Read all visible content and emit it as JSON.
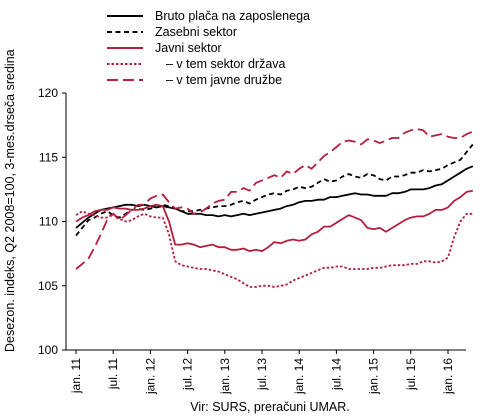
{
  "chart_data": {
    "type": "line",
    "title": "",
    "ylabel": "Desezon. indeks, Q2 2008=100, 3-mes.drseča sredina",
    "xlabel": "",
    "source": "Vir: SURS, preračuni UMAR.",
    "ylim": [
      100,
      120
    ],
    "yticks": [
      100,
      105,
      110,
      115,
      120
    ],
    "x_tick_labels": [
      "jan. 11",
      "jul. 11",
      "jan. 12",
      "jul. 12",
      "jan. 13",
      "jul. 13",
      "jan. 14",
      "jul. 14",
      "jan. 15",
      "jul. 15",
      "jan. 16"
    ],
    "x": [
      "2011-01",
      "2011-02",
      "2011-03",
      "2011-04",
      "2011-05",
      "2011-06",
      "2011-07",
      "2011-08",
      "2011-09",
      "2011-10",
      "2011-11",
      "2011-12",
      "2012-01",
      "2012-02",
      "2012-03",
      "2012-04",
      "2012-05",
      "2012-06",
      "2012-07",
      "2012-08",
      "2012-09",
      "2012-10",
      "2012-11",
      "2012-12",
      "2013-01",
      "2013-02",
      "2013-03",
      "2013-04",
      "2013-05",
      "2013-06",
      "2013-07",
      "2013-08",
      "2013-09",
      "2013-10",
      "2013-11",
      "2013-12",
      "2014-01",
      "2014-02",
      "2014-03",
      "2014-04",
      "2014-05",
      "2014-06",
      "2014-07",
      "2014-08",
      "2014-09",
      "2014-10",
      "2014-11",
      "2014-12",
      "2015-01",
      "2015-02",
      "2015-03",
      "2015-04",
      "2015-05",
      "2015-06",
      "2015-07",
      "2015-08",
      "2015-09",
      "2015-10",
      "2015-11",
      "2015-12",
      "2016-01",
      "2016-02",
      "2016-03",
      "2016-04",
      "2016-05"
    ],
    "grid": false,
    "legend_position": "top",
    "series": [
      {
        "name": "Bruto plača na zaposlenega",
        "color": "#000000",
        "style": "solid",
        "values": [
          109.5,
          109.9,
          110.3,
          110.6,
          110.9,
          111.0,
          111.1,
          111.2,
          111.3,
          111.3,
          111.2,
          111.3,
          111.2,
          111.1,
          111.2,
          111.1,
          111.0,
          110.8,
          110.6,
          110.6,
          110.6,
          110.5,
          110.5,
          110.4,
          110.5,
          110.4,
          110.5,
          110.6,
          110.5,
          110.6,
          110.7,
          110.8,
          110.9,
          111.0,
          111.2,
          111.3,
          111.5,
          111.6,
          111.6,
          111.7,
          111.7,
          111.9,
          111.9,
          112.0,
          112.1,
          112.2,
          112.1,
          112.1,
          112.0,
          112.0,
          112.0,
          112.2,
          112.2,
          112.3,
          112.5,
          112.5,
          112.5,
          112.6,
          112.8,
          112.9,
          113.2,
          113.5,
          113.8,
          114.1,
          114.3
        ]
      },
      {
        "name": "Zasebni sektor",
        "color": "#000000",
        "style": "dashed",
        "values": [
          108.9,
          109.5,
          110.1,
          110.3,
          110.6,
          110.8,
          110.5,
          110.3,
          110.6,
          110.9,
          111.0,
          110.9,
          111.0,
          111.1,
          111.3,
          111.2,
          111.0,
          110.8,
          110.8,
          110.8,
          110.9,
          111.0,
          111.1,
          111.2,
          111.2,
          111.3,
          111.5,
          111.6,
          111.4,
          111.7,
          111.9,
          112.1,
          112.2,
          112.1,
          112.4,
          112.5,
          112.7,
          112.6,
          112.7,
          113.0,
          113.3,
          113.1,
          113.2,
          113.5,
          113.7,
          113.5,
          113.4,
          113.7,
          113.6,
          113.3,
          113.2,
          113.5,
          113.5,
          113.6,
          113.8,
          113.8,
          114.0,
          113.9,
          114.0,
          114.1,
          114.4,
          114.6,
          114.8,
          115.4,
          116.0
        ]
      },
      {
        "name": "Javni sektor",
        "color": "#b51e3f",
        "style": "solid",
        "values": [
          110.0,
          110.3,
          110.5,
          110.8,
          110.9,
          110.9,
          111.1,
          111.0,
          111.0,
          110.9,
          110.9,
          111.0,
          111.2,
          111.3,
          111.2,
          110.0,
          108.2,
          108.2,
          108.3,
          108.2,
          108.0,
          108.1,
          108.2,
          108.0,
          108.0,
          107.8,
          107.8,
          107.9,
          107.7,
          107.8,
          107.7,
          108.0,
          108.4,
          108.3,
          108.5,
          108.6,
          108.5,
          108.6,
          109.0,
          109.2,
          109.6,
          109.6,
          109.9,
          110.2,
          110.5,
          110.3,
          110.1,
          109.5,
          109.4,
          109.5,
          109.2,
          109.5,
          109.8,
          110.1,
          110.3,
          110.4,
          110.4,
          110.6,
          110.9,
          110.9,
          111.1,
          111.6,
          111.9,
          112.3,
          112.4
        ]
      },
      {
        "name": "– v tem sektor država",
        "color": "#b51e3f",
        "style": "dotted",
        "values": [
          110.5,
          110.8,
          110.6,
          110.5,
          110.3,
          110.3,
          110.6,
          110.2,
          110.0,
          110.1,
          110.4,
          110.6,
          110.4,
          110.3,
          110.3,
          109.0,
          106.9,
          106.6,
          106.5,
          106.4,
          106.3,
          106.3,
          106.2,
          106.1,
          105.9,
          105.7,
          105.5,
          105.2,
          104.9,
          104.9,
          105.0,
          105.0,
          104.9,
          105.0,
          105.1,
          105.4,
          105.6,
          105.8,
          106.0,
          106.2,
          106.4,
          106.4,
          106.5,
          106.5,
          106.3,
          106.3,
          106.3,
          106.3,
          106.4,
          106.4,
          106.5,
          106.6,
          106.6,
          106.6,
          106.7,
          106.7,
          106.9,
          106.9,
          106.8,
          106.9,
          107.2,
          108.8,
          110.0,
          110.6,
          110.6
        ]
      },
      {
        "name": "– v tem javne družbe",
        "color": "#b51e3f",
        "style": "longdash",
        "values": [
          106.3,
          106.7,
          107.1,
          108.0,
          109.0,
          110.1,
          110.6,
          110.1,
          110.5,
          110.9,
          111.3,
          111.3,
          111.8,
          112.0,
          112.1,
          111.5,
          111.0,
          111.1,
          111.0,
          110.6,
          110.7,
          111.0,
          111.4,
          111.6,
          111.7,
          112.3,
          112.3,
          112.6,
          112.4,
          113.0,
          113.2,
          113.4,
          113.6,
          113.4,
          113.9,
          113.7,
          114.1,
          114.4,
          114.1,
          114.6,
          115.1,
          115.4,
          115.8,
          116.2,
          116.3,
          116.2,
          116.0,
          116.4,
          116.3,
          116.1,
          116.3,
          116.5,
          116.5,
          116.9,
          117.1,
          117.2,
          117.1,
          116.6,
          116.7,
          116.8,
          116.6,
          116.5,
          116.5,
          116.8,
          117.0
        ]
      }
    ]
  }
}
